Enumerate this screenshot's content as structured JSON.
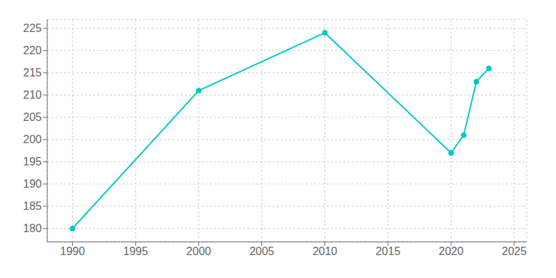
{
  "chart_data": {
    "type": "line",
    "x": [
      1990,
      2000,
      2010,
      2020,
      2021,
      2022,
      2023
    ],
    "values": [
      180,
      211,
      224,
      197,
      201,
      213,
      216
    ],
    "color": "#00C8C8",
    "marker": "circle",
    "xlim": [
      1988,
      2026
    ],
    "ylim": [
      177,
      227
    ],
    "xticks": [
      1990,
      1995,
      2000,
      2005,
      2010,
      2015,
      2020,
      2025
    ],
    "yticks": [
      180,
      185,
      190,
      195,
      200,
      205,
      210,
      215,
      220,
      225
    ],
    "grid": true
  }
}
